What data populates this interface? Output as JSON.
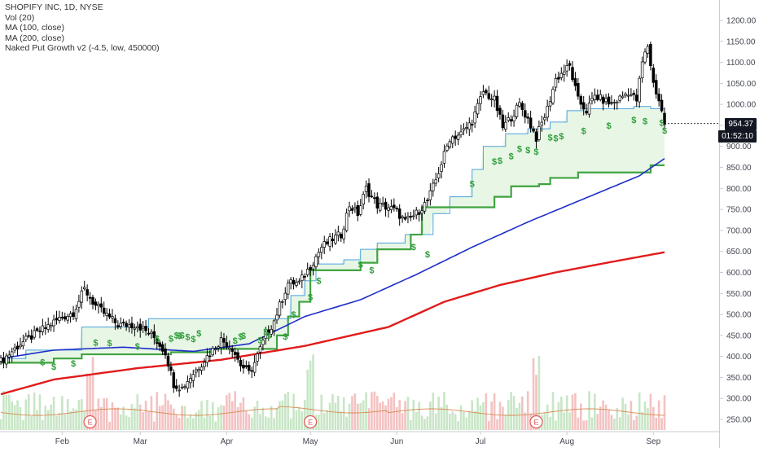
{
  "header": {
    "symbol_line": "SHOPIFY INC, 1D, NYSE",
    "indicators": [
      "Vol (20)",
      "MA (100, close)",
      "MA (200, close)",
      "Naked Put Growth v2 (-4.5, low, 450000)"
    ]
  },
  "price_tags": {
    "last_price": "954.37",
    "countdown": "01:52:10"
  },
  "earnings_marker": "E",
  "signal_marker": "$",
  "colors": {
    "up_candle": "#ffffff",
    "down_candle": "#000000",
    "candle_outline": "#000000",
    "ma100": "#1e2fc9",
    "ma200": "#e21b1b",
    "put_support": "#3fa33f",
    "put_band_fill": "#e8f6e6",
    "upper_line": "#4aa3df",
    "signal": "#2e9e3a",
    "volume_up": "#c8e6c6",
    "volume_down": "#f3c2c2",
    "vol_ma": "#d98a4f",
    "earnings": "#e05555"
  },
  "chart_data": {
    "type": "candlestick",
    "title": "SHOPIFY INC, 1D, NYSE",
    "x_axis": {
      "labels": [
        "Feb",
        "Mar",
        "Apr",
        "May",
        "Jun",
        "Jul",
        "Aug",
        "Sep"
      ],
      "label_days": [
        23,
        51,
        82,
        112,
        143,
        173,
        204,
        235
      ]
    },
    "y_axis": {
      "ticks": [
        "1200.00",
        "1150.00",
        "1100.00",
        "1050.00",
        "1000.00",
        "950.00",
        "900.00",
        "850.00",
        "800.00",
        "750.00",
        "700.00",
        "650.00",
        "600.00",
        "550.00",
        "500.00",
        "450.00",
        "400.00",
        "350.00",
        "300.00",
        "250.00"
      ],
      "range": [
        235,
        1245
      ]
    },
    "close_keypoints": [
      [
        1,
        388
      ],
      [
        8,
        430
      ],
      [
        15,
        460
      ],
      [
        22,
        490
      ],
      [
        27,
        505
      ],
      [
        31,
        560
      ],
      [
        35,
        520
      ],
      [
        43,
        475
      ],
      [
        50,
        475
      ],
      [
        56,
        445
      ],
      [
        60,
        410
      ],
      [
        63,
        335
      ],
      [
        66,
        325
      ],
      [
        70,
        360
      ],
      [
        75,
        400
      ],
      [
        80,
        440
      ],
      [
        84,
        420
      ],
      [
        87,
        380
      ],
      [
        90,
        360
      ],
      [
        92,
        385
      ],
      [
        96,
        450
      ],
      [
        99,
        485
      ],
      [
        104,
        575
      ],
      [
        108,
        575
      ],
      [
        112,
        615
      ],
      [
        116,
        660
      ],
      [
        120,
        680
      ],
      [
        123,
        690
      ],
      [
        126,
        760
      ],
      [
        129,
        740
      ],
      [
        132,
        800
      ],
      [
        136,
        760
      ],
      [
        140,
        755
      ],
      [
        143,
        745
      ],
      [
        146,
        720
      ],
      [
        150,
        740
      ],
      [
        154,
        770
      ],
      [
        157,
        820
      ],
      [
        162,
        920
      ],
      [
        166,
        930
      ],
      [
        170,
        960
      ],
      [
        174,
        1030
      ],
      [
        178,
        1010
      ],
      [
        181,
        945
      ],
      [
        184,
        970
      ],
      [
        187,
        1000
      ],
      [
        190,
        965
      ],
      [
        193,
        920
      ],
      [
        197,
        990
      ],
      [
        200,
        1060
      ],
      [
        203,
        1080
      ],
      [
        205,
        1090
      ],
      [
        208,
        1010
      ],
      [
        211,
        985
      ],
      [
        214,
        1020
      ],
      [
        220,
        1000
      ],
      [
        226,
        1030
      ],
      [
        229,
        1010
      ],
      [
        231,
        1100
      ],
      [
        233,
        1140
      ],
      [
        235,
        1050
      ],
      [
        237,
        1010
      ],
      [
        239,
        954
      ]
    ],
    "ma100_keypoints": [
      [
        1,
        395
      ],
      [
        20,
        415
      ],
      [
        45,
        422
      ],
      [
        70,
        412
      ],
      [
        90,
        430
      ],
      [
        110,
        495
      ],
      [
        130,
        535
      ],
      [
        150,
        595
      ],
      [
        170,
        660
      ],
      [
        190,
        720
      ],
      [
        210,
        775
      ],
      [
        230,
        830
      ],
      [
        239,
        871
      ]
    ],
    "ma200_keypoints": [
      [
        1,
        310
      ],
      [
        20,
        345
      ],
      [
        50,
        372
      ],
      [
        80,
        392
      ],
      [
        110,
        425
      ],
      [
        140,
        470
      ],
      [
        160,
        530
      ],
      [
        180,
        570
      ],
      [
        200,
        600
      ],
      [
        220,
        625
      ],
      [
        239,
        648
      ]
    ],
    "put_support_steps": [
      [
        1,
        385
      ],
      [
        20,
        395
      ],
      [
        30,
        405
      ],
      [
        62,
        410
      ],
      [
        76,
        418
      ],
      [
        97,
        418
      ],
      [
        100,
        450
      ],
      [
        104,
        495
      ],
      [
        108,
        530
      ],
      [
        112,
        605
      ],
      [
        124,
        605
      ],
      [
        130,
        623
      ],
      [
        136,
        655
      ],
      [
        142,
        655
      ],
      [
        148,
        690
      ],
      [
        152,
        755
      ],
      [
        172,
        755
      ],
      [
        178,
        780
      ],
      [
        184,
        805
      ],
      [
        194,
        810
      ],
      [
        198,
        825
      ],
      [
        208,
        838
      ],
      [
        231,
        838
      ],
      [
        234,
        855
      ],
      [
        239,
        855
      ]
    ],
    "upper_line_steps": [
      [
        1,
        395
      ],
      [
        10,
        415
      ],
      [
        30,
        470
      ],
      [
        54,
        490
      ],
      [
        80,
        490
      ],
      [
        103,
        490
      ],
      [
        105,
        545
      ],
      [
        110,
        580
      ],
      [
        114,
        620
      ],
      [
        124,
        630
      ],
      [
        130,
        655
      ],
      [
        136,
        670
      ],
      [
        146,
        690
      ],
      [
        156,
        740
      ],
      [
        162,
        780
      ],
      [
        170,
        845
      ],
      [
        174,
        900
      ],
      [
        182,
        930
      ],
      [
        190,
        942
      ],
      [
        198,
        958
      ],
      [
        204,
        985
      ],
      [
        210,
        990
      ],
      [
        222,
        990
      ],
      [
        228,
        995
      ],
      [
        234,
        990
      ],
      [
        239,
        980
      ]
    ],
    "signal_days": [
      16,
      20,
      27,
      35,
      40,
      50,
      57,
      62,
      64,
      65,
      66,
      68,
      70,
      72,
      85,
      87,
      88,
      94,
      96,
      97,
      103,
      106,
      112,
      115,
      130,
      134,
      149,
      154,
      170,
      178,
      180,
      184,
      187,
      190,
      193,
      198,
      200,
      202,
      210,
      219,
      228,
      232,
      238,
      239
    ],
    "earnings_days": [
      33,
      112,
      193
    ],
    "volume_ma_level": 300
  }
}
